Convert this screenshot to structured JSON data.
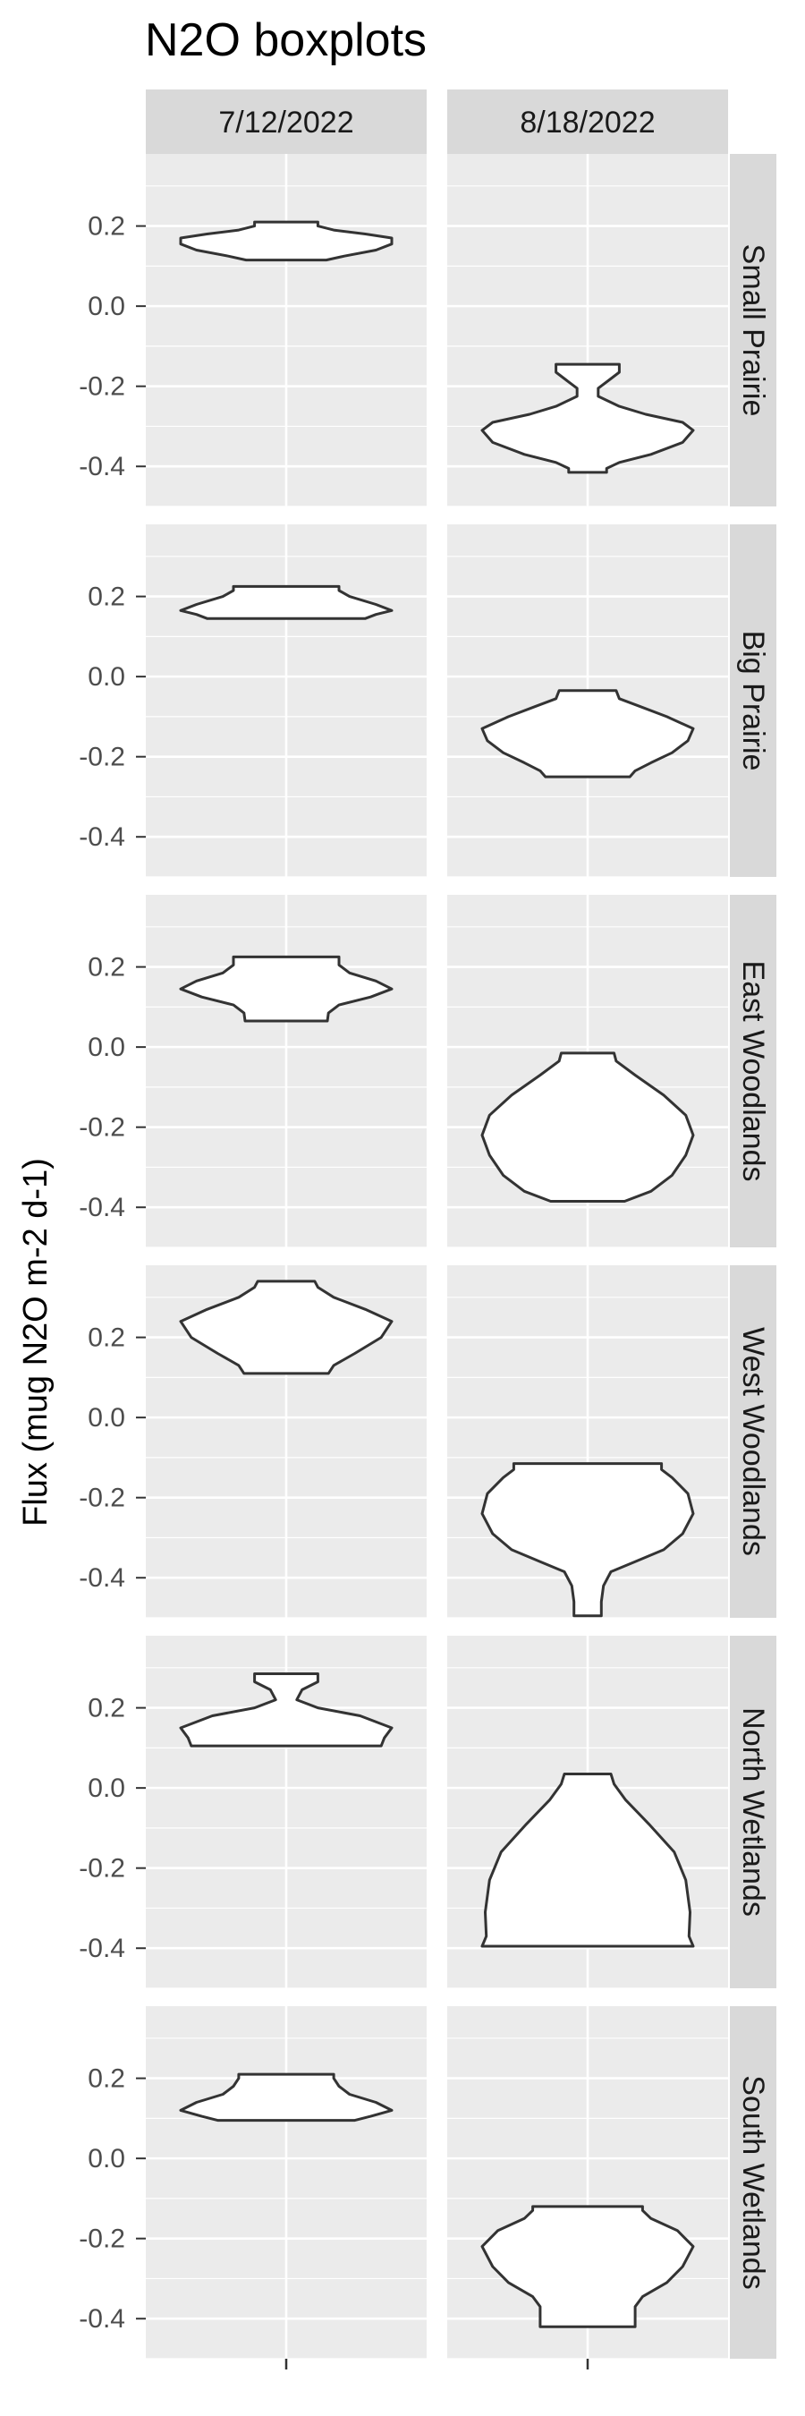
{
  "chart_data": {
    "type": "violin",
    "title": "N2O boxplots",
    "xlabel": "",
    "ylabel": "Flux (mug N2O m-2 d-1)",
    "ylim": [
      -0.5,
      0.38
    ],
    "y_ticks": [
      0.2,
      0.0,
      -0.2,
      -0.4
    ],
    "y_tick_labels": [
      "0.2",
      "0.0",
      "-0.2",
      "-0.4"
    ],
    "columns": [
      "7/12/2022",
      "8/18/2022"
    ],
    "rows": [
      "Small Prairie",
      "Big Prairie",
      "East Woodlands",
      "West Woodlands",
      "North Wetlands",
      "South Wetlands"
    ],
    "colors": {
      "panel": "#ebebeb",
      "strip": "#d9d9d9",
      "grid": "#ffffff",
      "outline": "#333333",
      "fill": "#ffffff"
    },
    "violins": [
      {
        "row": "Small Prairie",
        "column": "7/12/2022",
        "min": 0.115,
        "max": 0.21,
        "profile": [
          [
            0.115,
            0.38
          ],
          [
            0.125,
            0.55
          ],
          [
            0.14,
            0.85
          ],
          [
            0.155,
            1.0
          ],
          [
            0.17,
            1.0
          ],
          [
            0.18,
            0.75
          ],
          [
            0.19,
            0.45
          ],
          [
            0.2,
            0.3
          ],
          [
            0.21,
            0.3
          ]
        ]
      },
      {
        "row": "Small Prairie",
        "column": "8/18/2022",
        "min": -0.415,
        "max": -0.145,
        "profile": [
          [
            -0.415,
            0.18
          ],
          [
            -0.405,
            0.18
          ],
          [
            -0.39,
            0.3
          ],
          [
            -0.37,
            0.6
          ],
          [
            -0.34,
            0.9
          ],
          [
            -0.31,
            1.0
          ],
          [
            -0.29,
            0.9
          ],
          [
            -0.27,
            0.55
          ],
          [
            -0.25,
            0.3
          ],
          [
            -0.225,
            0.1
          ],
          [
            -0.205,
            0.1
          ],
          [
            -0.185,
            0.2
          ],
          [
            -0.165,
            0.3
          ],
          [
            -0.145,
            0.3
          ]
        ]
      },
      {
        "row": "Big Prairie",
        "column": "7/12/2022",
        "min": 0.145,
        "max": 0.225,
        "profile": [
          [
            0.145,
            0.75
          ],
          [
            0.155,
            0.85
          ],
          [
            0.165,
            1.0
          ],
          [
            0.18,
            0.85
          ],
          [
            0.2,
            0.6
          ],
          [
            0.215,
            0.5
          ],
          [
            0.225,
            0.5
          ]
        ]
      },
      {
        "row": "Big Prairie",
        "column": "8/18/2022",
        "min": -0.25,
        "max": -0.035,
        "profile": [
          [
            -0.25,
            0.4
          ],
          [
            -0.235,
            0.45
          ],
          [
            -0.215,
            0.6
          ],
          [
            -0.19,
            0.8
          ],
          [
            -0.16,
            0.95
          ],
          [
            -0.13,
            1.0
          ],
          [
            -0.1,
            0.75
          ],
          [
            -0.075,
            0.5
          ],
          [
            -0.055,
            0.3
          ],
          [
            -0.035,
            0.27
          ]
        ]
      },
      {
        "row": "East Woodlands",
        "column": "7/12/2022",
        "min": 0.065,
        "max": 0.225,
        "profile": [
          [
            0.065,
            0.39
          ],
          [
            0.085,
            0.4
          ],
          [
            0.105,
            0.5
          ],
          [
            0.125,
            0.8
          ],
          [
            0.145,
            1.0
          ],
          [
            0.165,
            0.85
          ],
          [
            0.185,
            0.6
          ],
          [
            0.205,
            0.5
          ],
          [
            0.225,
            0.5
          ]
        ]
      },
      {
        "row": "East Woodlands",
        "column": "8/18/2022",
        "min": -0.385,
        "max": -0.015,
        "profile": [
          [
            -0.385,
            0.35
          ],
          [
            -0.36,
            0.6
          ],
          [
            -0.32,
            0.8
          ],
          [
            -0.27,
            0.93
          ],
          [
            -0.22,
            1.0
          ],
          [
            -0.17,
            0.93
          ],
          [
            -0.12,
            0.72
          ],
          [
            -0.07,
            0.45
          ],
          [
            -0.035,
            0.27
          ],
          [
            -0.015,
            0.25
          ]
        ]
      },
      {
        "row": "West Woodlands",
        "column": "7/12/2022",
        "min": 0.11,
        "max": 0.34,
        "profile": [
          [
            0.11,
            0.4
          ],
          [
            0.13,
            0.45
          ],
          [
            0.16,
            0.65
          ],
          [
            0.2,
            0.9
          ],
          [
            0.24,
            1.0
          ],
          [
            0.27,
            0.75
          ],
          [
            0.3,
            0.45
          ],
          [
            0.325,
            0.3
          ],
          [
            0.34,
            0.27
          ]
        ]
      },
      {
        "row": "West Woodlands",
        "column": "8/18/2022",
        "min": -0.495,
        "max": -0.115,
        "profile": [
          [
            -0.495,
            0.13
          ],
          [
            -0.46,
            0.13
          ],
          [
            -0.42,
            0.15
          ],
          [
            -0.385,
            0.22
          ],
          [
            -0.36,
            0.45
          ],
          [
            -0.33,
            0.72
          ],
          [
            -0.29,
            0.9
          ],
          [
            -0.24,
            1.0
          ],
          [
            -0.19,
            0.95
          ],
          [
            -0.15,
            0.8
          ],
          [
            -0.13,
            0.7
          ],
          [
            -0.115,
            0.7
          ]
        ]
      },
      {
        "row": "North Wetlands",
        "column": "7/12/2022",
        "min": 0.105,
        "max": 0.285,
        "profile": [
          [
            0.105,
            0.9
          ],
          [
            0.125,
            0.93
          ],
          [
            0.15,
            1.0
          ],
          [
            0.18,
            0.7
          ],
          [
            0.2,
            0.3
          ],
          [
            0.22,
            0.1
          ],
          [
            0.245,
            0.15
          ],
          [
            0.265,
            0.3
          ],
          [
            0.285,
            0.3
          ]
        ]
      },
      {
        "row": "North Wetlands",
        "column": "8/18/2022",
        "min": -0.395,
        "max": 0.035,
        "profile": [
          [
            -0.395,
            1.0
          ],
          [
            -0.37,
            0.96
          ],
          [
            -0.31,
            0.97
          ],
          [
            -0.23,
            0.93
          ],
          [
            -0.16,
            0.82
          ],
          [
            -0.09,
            0.58
          ],
          [
            -0.03,
            0.36
          ],
          [
            0.01,
            0.25
          ],
          [
            0.035,
            0.22
          ]
        ]
      },
      {
        "row": "South Wetlands",
        "column": "7/12/2022",
        "min": 0.095,
        "max": 0.21,
        "profile": [
          [
            0.095,
            0.65
          ],
          [
            0.105,
            0.8
          ],
          [
            0.12,
            1.0
          ],
          [
            0.14,
            0.85
          ],
          [
            0.16,
            0.6
          ],
          [
            0.18,
            0.5
          ],
          [
            0.2,
            0.45
          ],
          [
            0.21,
            0.45
          ]
        ]
      },
      {
        "row": "South Wetlands",
        "column": "8/18/2022",
        "min": -0.42,
        "max": -0.12,
        "profile": [
          [
            -0.42,
            0.45
          ],
          [
            -0.395,
            0.45
          ],
          [
            -0.37,
            0.45
          ],
          [
            -0.345,
            0.52
          ],
          [
            -0.31,
            0.75
          ],
          [
            -0.27,
            0.9
          ],
          [
            -0.22,
            1.0
          ],
          [
            -0.18,
            0.85
          ],
          [
            -0.15,
            0.6
          ],
          [
            -0.13,
            0.52
          ],
          [
            -0.12,
            0.52
          ]
        ]
      }
    ]
  }
}
